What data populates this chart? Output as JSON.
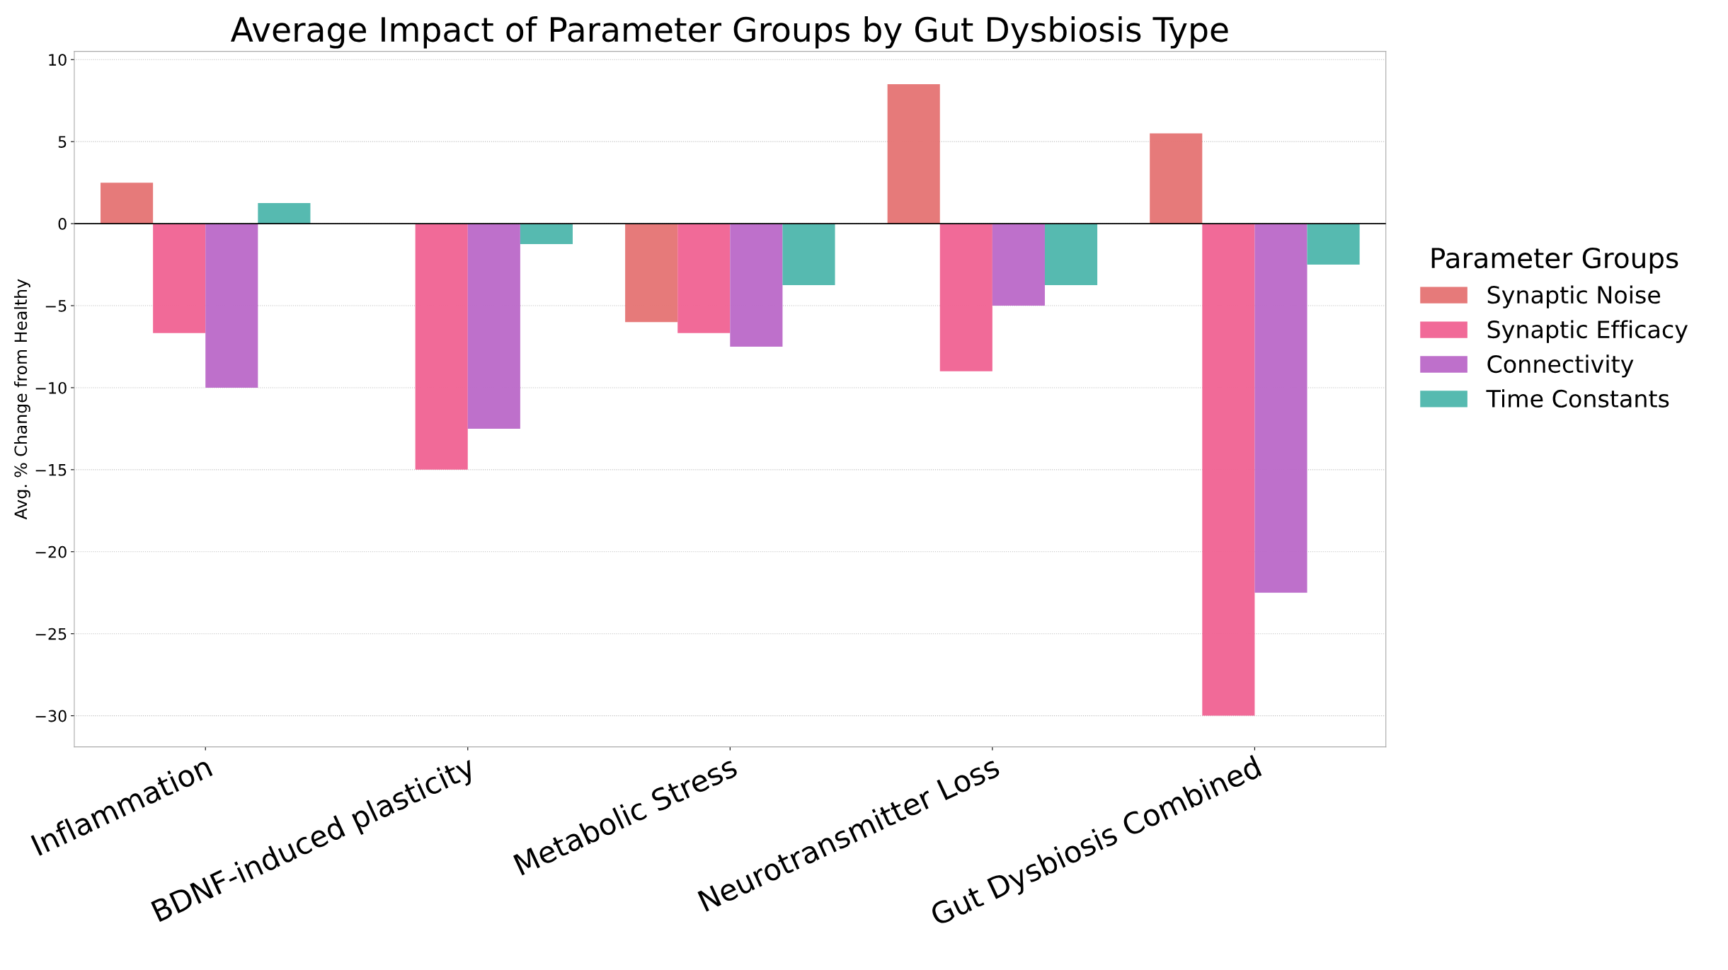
{
  "chart_data": {
    "type": "bar",
    "title": "Average Impact of Parameter Groups by Gut Dysbiosis Type",
    "ylabel": "Avg. % Change from Healthy",
    "legend_title": "Parameter Groups",
    "categories": [
      "Inflammation",
      "BDNF-induced plasticity",
      "Metabolic Stress",
      "Neurotransmitter Loss",
      "Gut Dysbiosis Combined"
    ],
    "series": [
      {
        "name": "Synaptic Noise",
        "color": "#e57373",
        "values": [
          2.5,
          0,
          -6,
          8.5,
          5.5
        ]
      },
      {
        "name": "Synaptic Efficacy",
        "color": "#f06292",
        "values": [
          -6.67,
          -15,
          -6.67,
          -9,
          -30
        ]
      },
      {
        "name": "Connectivity",
        "color": "#ba68c8",
        "values": [
          -10,
          -12.5,
          -7.5,
          -5,
          -22.5
        ]
      },
      {
        "name": "Time Constants",
        "color": "#4db6ac",
        "values": [
          1.25,
          -1.25,
          -3.75,
          -3.75,
          -2.5
        ]
      }
    ],
    "ylim": [
      -31.9,
      10.5
    ],
    "yticks": [
      -30,
      -25,
      -20,
      -15,
      -10,
      -5,
      0,
      5,
      10
    ],
    "grid": "y",
    "legend": "right",
    "ref_lines": [
      {
        "axis": "y",
        "value": 0,
        "color": "#000000"
      }
    ]
  }
}
